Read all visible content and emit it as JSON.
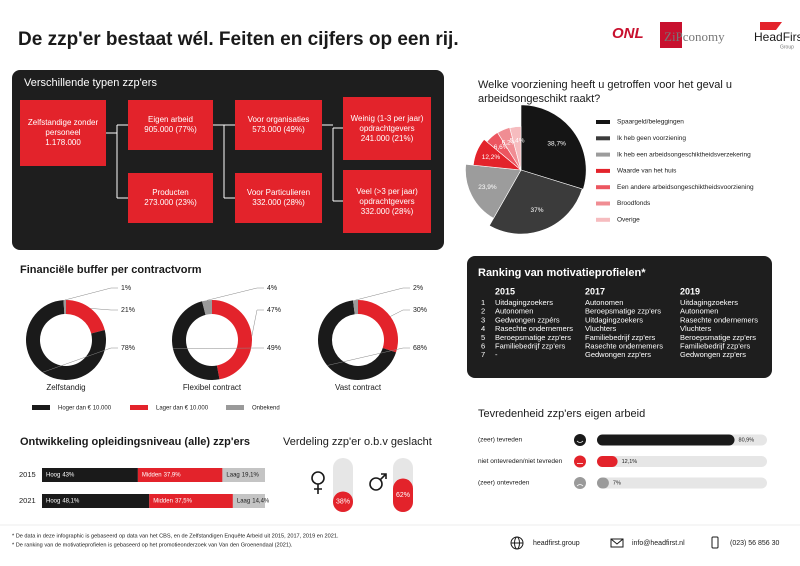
{
  "header": {
    "title": "De zzp'er bestaat wél. Feiten en cijfers op een rij.",
    "logos": [
      "ONL",
      "ZiPconomy",
      "HeadFirst",
      "Group"
    ]
  },
  "types": {
    "title": "Verschillende typen zzp'ers",
    "boxes": [
      {
        "label": "Zelfstandige zonder personeel",
        "figure": "1.178.000"
      },
      {
        "label": "Eigen arbeid",
        "figure": "905.000 (77%)"
      },
      {
        "label": "Producten",
        "figure": "273.000 (23%)"
      },
      {
        "label": "Voor organisaties",
        "figure": "573.000 (49%)"
      },
      {
        "label": "Voor Particulieren",
        "figure": "332.000 (28%)"
      },
      {
        "label": "Weinig (1-3 per jaar) opdrachtgevers",
        "figure": "241.000 (21%)"
      },
      {
        "label": "Veel (>3 per jaar) opdrachtgevers",
        "figure": "332.000 (28%)"
      }
    ]
  },
  "ranking": {
    "title": "Ranking van motivatieprofielen*",
    "ranks": [
      "1",
      "2",
      "3",
      "4",
      "5",
      "6",
      "7"
    ],
    "columns": [
      {
        "year": "2015",
        "items": [
          "Uitdagingzoekers",
          "Autonomen",
          "Gedwongen zzpérs",
          "Rasechte ondernemers",
          "Beroepsmatige zzp'ers",
          "Familiebedrijf zzp'ers",
          "-"
        ]
      },
      {
        "year": "2017",
        "items": [
          "Autonomen",
          "Beroepsmatige zzp'ers",
          "Uitdagingzoekers",
          "Vluchters",
          "Familiebedrijf zzp'ers",
          "Rasechte ondernemers",
          "Gedwongen zzp'ers"
        ]
      },
      {
        "year": "2019",
        "items": [
          "Uitdagingzoekers",
          "Autonomen",
          "Rasechte ondernemers",
          "Vluchters",
          "Beroepsmatige zzp'ers",
          "Familiebedrijf zzp'ers",
          "Gedwongen zzp'ers"
        ]
      }
    ]
  },
  "chart_data": [
    {
      "type": "pie",
      "title": "Welke voorziening heeft u getroffen voor het geval u arbeidsongeschikt raakt?",
      "categories": [
        "Spaargeld/beleggingen",
        "Ik heb geen voorziening",
        "Ik heb een arbeidsongeschiktheidsverzekering",
        "Waarde van het huis",
        "Een andere arbeidsongeschiktheidsvoorziening",
        "Broodfonds",
        "Overige"
      ],
      "values": [
        38.7,
        37,
        23.9,
        12.2,
        6.6,
        6.2,
        5.4
      ],
      "value_labels": [
        "38,7%",
        "37%",
        "23,9%",
        "12,2%",
        "6,6%",
        "6,2%",
        "5,4%"
      ],
      "colors": [
        "#151515",
        "#3b3b3b",
        "#9c9c9c",
        "#e3232b",
        "#ec5660",
        "#f08d93",
        "#f6bcbf"
      ]
    },
    {
      "type": "donut",
      "title": "Financiële buffer per contractvorm",
      "categories": [
        "Zelfstandig",
        "Flexibel contract",
        "Vast contract"
      ],
      "series": [
        {
          "name": "Lager dan € 10.000",
          "color": "#e3232b",
          "values": [
            21,
            47,
            30
          ],
          "value_labels": [
            "21%",
            "47%",
            "30%"
          ]
        },
        {
          "name": "Hoger dan € 10.000",
          "color": "#1a1a1a",
          "values": [
            78,
            49,
            68
          ],
          "value_labels": [
            "78%",
            "49%",
            "68%"
          ]
        },
        {
          "name": "Onbekend",
          "color": "#9a9a9a",
          "values": [
            1,
            4,
            2
          ],
          "value_labels": [
            "1%",
            "4%",
            "2%"
          ]
        }
      ]
    },
    {
      "type": "bar",
      "title": "Tevredenheid zzp'ers eigen arbeid",
      "categories": [
        "(zeer) tevreden",
        "niet ontevreden/niet tevreden",
        "(zeer) ontevreden"
      ],
      "values": [
        80.9,
        12.1,
        7
      ],
      "value_labels": [
        "80,9%",
        "12,1%",
        "7%"
      ],
      "colors": [
        "#1a1a1a",
        "#e3232b",
        "#9a9a9a"
      ],
      "xlim": [
        0,
        100
      ]
    },
    {
      "type": "stacked-bar",
      "title": "Ontwikkeling opleidingsniveau (alle) zzp'ers",
      "categories": [
        "2015",
        "2021"
      ],
      "xlim": [
        0,
        100
      ],
      "series": [
        {
          "name": "Hoog",
          "color": "#1a1a1a",
          "values": [
            43,
            48.1
          ],
          "value_labels": [
            "43%",
            "48,1%"
          ]
        },
        {
          "name": "Midden",
          "color": "#e3232b",
          "values": [
            37.9,
            37.5
          ],
          "value_labels": [
            "37,9%",
            "37,5%"
          ]
        },
        {
          "name": "Laag",
          "color": "#c4c4c4",
          "values": [
            19.1,
            14.4
          ],
          "value_labels": [
            "19,1%",
            "14,4%"
          ]
        }
      ]
    },
    {
      "type": "gauge",
      "title": "Verdeling zzp'er o.b.v geslacht",
      "values": [
        38,
        62
      ],
      "value_labels": [
        "38%",
        "62%"
      ],
      "color": "#e3232b",
      "ylim": [
        0,
        100
      ]
    }
  ],
  "footer": {
    "notes": [
      "* De data in deze infographic is gebaseerd op data van het CBS, en de Zelfstandigen Enquête Arbeid uit 2015, 2017, 2019 en 2021.",
      "* De ranking van de motivatieprofielen is gebaseerd op het promotieonderzoek van Van den Groenendaal (2021)."
    ],
    "website": "headfirst.group",
    "email": "info@headfirst.nl",
    "phone": "(023) 56 856 30"
  }
}
